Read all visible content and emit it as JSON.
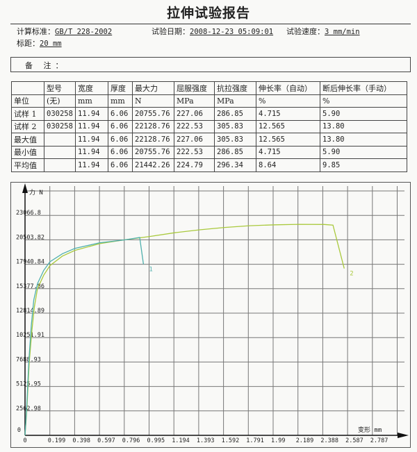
{
  "report": {
    "title": "拉伸试验报告",
    "standard_label": "计算标准：",
    "standard_value": "GB/T 228-2002",
    "date_label": "试验日期：",
    "date_value": "2008-12-23 05:09:01",
    "speed_label": "试验速度：",
    "speed_value": "3 mm/min",
    "gauge_label": "标距：",
    "gauge_value": "20 mm",
    "remark_label": "备 注："
  },
  "table": {
    "headers": [
      "",
      "型号",
      "宽度",
      "厚度",
      "最大力",
      "屈服强度",
      "抗拉强度",
      "伸长率（自动）",
      "断后伸长率（手动）"
    ],
    "rows": [
      [
        "单位",
        "(无)",
        "mm",
        "mm",
        "N",
        "MPa",
        "MPa",
        "%",
        "%"
      ],
      [
        "试样 1",
        "030258",
        "11.94",
        "6.06",
        "20755.76",
        "227.06",
        "286.85",
        "4.715",
        "5.90"
      ],
      [
        "试样 2",
        "030258",
        "11.94",
        "6.06",
        "22128.76",
        "222.53",
        "305.83",
        "12.565",
        "13.80"
      ],
      [
        "最大值",
        "",
        "11.94",
        "6.06",
        "22128.76",
        "227.06",
        "305.83",
        "12.565",
        "13.80"
      ],
      [
        "最小值",
        "",
        "11.94",
        "6.06",
        "20755.76",
        "222.53",
        "286.85",
        "4.715",
        "5.90"
      ],
      [
        "平均值",
        "",
        "11.94",
        "6.06",
        "21442.26",
        "224.79",
        "296.34",
        "8.64",
        "9.85"
      ]
    ]
  },
  "chart_data": {
    "type": "line",
    "ylabel": "力 N",
    "xlabel": "变形 mm",
    "grid": true,
    "xlim": [
      0,
      3.1
    ],
    "ylim": [
      0,
      25629.8
    ],
    "x_ticks": [
      "0",
      "0.199",
      "0.398",
      "0.597",
      "0.796",
      "0.995",
      "1.194",
      "1.393",
      "1.592",
      "1.791",
      "1.99",
      "2.189",
      "2.388",
      "2.587",
      "2.787"
    ],
    "y_ticks": [
      "0",
      "2562.98",
      "5125.95",
      "7688.93",
      "10251.91",
      "12814.89",
      "15377.86",
      "17940.84",
      "20503.82",
      "23066.8"
    ],
    "series": [
      {
        "name": "1",
        "color": "#4fb0ad",
        "points": [
          [
            0,
            0
          ],
          [
            0.012,
            2563
          ],
          [
            0.03,
            7689
          ],
          [
            0.05,
            11500
          ],
          [
            0.07,
            14200
          ],
          [
            0.1,
            15900
          ],
          [
            0.15,
            17300
          ],
          [
            0.2,
            18200
          ],
          [
            0.3,
            19050
          ],
          [
            0.4,
            19600
          ],
          [
            0.6,
            20200
          ],
          [
            0.8,
            20500
          ],
          [
            0.92,
            20755
          ],
          [
            0.95,
            17950
          ]
        ]
      },
      {
        "name": "2",
        "color": "#a9c93c",
        "points": [
          [
            0,
            0
          ],
          [
            0.014,
            2563
          ],
          [
            0.034,
            7689
          ],
          [
            0.055,
            11000
          ],
          [
            0.075,
            13500
          ],
          [
            0.1,
            15377
          ],
          [
            0.15,
            16800
          ],
          [
            0.2,
            17800
          ],
          [
            0.3,
            18800
          ],
          [
            0.4,
            19400
          ],
          [
            0.6,
            20100
          ],
          [
            0.8,
            20503
          ],
          [
            1.0,
            20850
          ],
          [
            1.2,
            21250
          ],
          [
            1.4,
            21550
          ],
          [
            1.6,
            21800
          ],
          [
            1.8,
            21980
          ],
          [
            2.0,
            22080
          ],
          [
            2.2,
            22128
          ],
          [
            2.4,
            22110
          ],
          [
            2.47,
            22050
          ],
          [
            2.56,
            17500
          ]
        ]
      }
    ]
  }
}
